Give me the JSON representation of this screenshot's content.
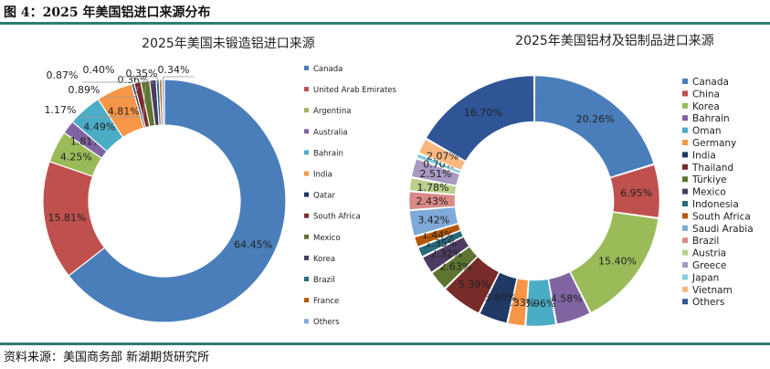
{
  "figure": {
    "title": "图 4：2025 年美国铝进口来源分布",
    "source": "资料来源：美国商务部 新湖期货研究所"
  },
  "chart_data": [
    {
      "type": "pie",
      "title": "2025年美国未锻造铝进口来源",
      "legend_position": "right",
      "categories": [
        "Canada",
        "United Arab Emirates",
        "Argentina",
        "Australia",
        "Bahrain",
        "India",
        "Qatar",
        "South Africa",
        "Mexico",
        "Korea",
        "Brazil",
        "France",
        "Others"
      ],
      "values": [
        64.45,
        15.81,
        4.25,
        1.81,
        4.49,
        4.81,
        0.36,
        0.89,
        1.17,
        0.87,
        0.4,
        0.35,
        0.34
      ],
      "labels": [
        "64.45%",
        "15.81%",
        "4.25%",
        "1.81%",
        "4.49%",
        "4.81%",
        "0.36%",
        "0.89%",
        "1.17%",
        "0.87%",
        "0.40%",
        "0.35%",
        "0.34%"
      ],
      "colors": [
        "#4a7ebb",
        "#c0504d",
        "#9bbb59",
        "#8064a2",
        "#4bacc6",
        "#f79646",
        "#1f3864",
        "#772c2a",
        "#5e7530",
        "#4d3b62",
        "#276a7c",
        "#b65708",
        "#7fa9d8"
      ]
    },
    {
      "type": "pie",
      "title": "2025年美国铝材及铝制品进口来源",
      "legend_position": "right",
      "categories": [
        "Canada",
        "China",
        "Korea",
        "Bahrain",
        "Oman",
        "Germany",
        "India",
        "Thailand",
        "Türkiye",
        "Mexico",
        "Indonesia",
        "South Africa",
        "Saudi Arabia",
        "Brazil",
        "Austria",
        "Greece",
        "Japan",
        "Vietnam",
        "Others"
      ],
      "values": [
        20.26,
        6.95,
        15.4,
        4.58,
        3.96,
        2.33,
        3.8,
        5.39,
        2.63,
        2.32,
        1.35,
        1.44,
        3.42,
        2.43,
        1.78,
        2.51,
        0.7,
        2.07,
        16.7
      ],
      "labels": [
        "20.26%",
        "6.95%",
        "15.40%",
        "4.58%",
        "3.96%",
        "2.33%",
        "3.80%",
        "5.39%",
        "2.63%",
        "2.32%",
        "1.35%",
        "1.44%",
        "3.42%",
        "2.43%",
        "1.78%",
        "2.51%",
        "0.70%",
        "2.07%",
        "16.70%"
      ],
      "colors": [
        "#4a7ebb",
        "#c0504d",
        "#9bbb59",
        "#8064a2",
        "#4bacc6",
        "#f79646",
        "#1f3864",
        "#772c2a",
        "#5e7530",
        "#4d3b62",
        "#276a7c",
        "#b65708",
        "#7fa9d8",
        "#d98986",
        "#b8d08a",
        "#a899c3",
        "#86cde0",
        "#fab77e",
        "#2f5597"
      ]
    }
  ]
}
